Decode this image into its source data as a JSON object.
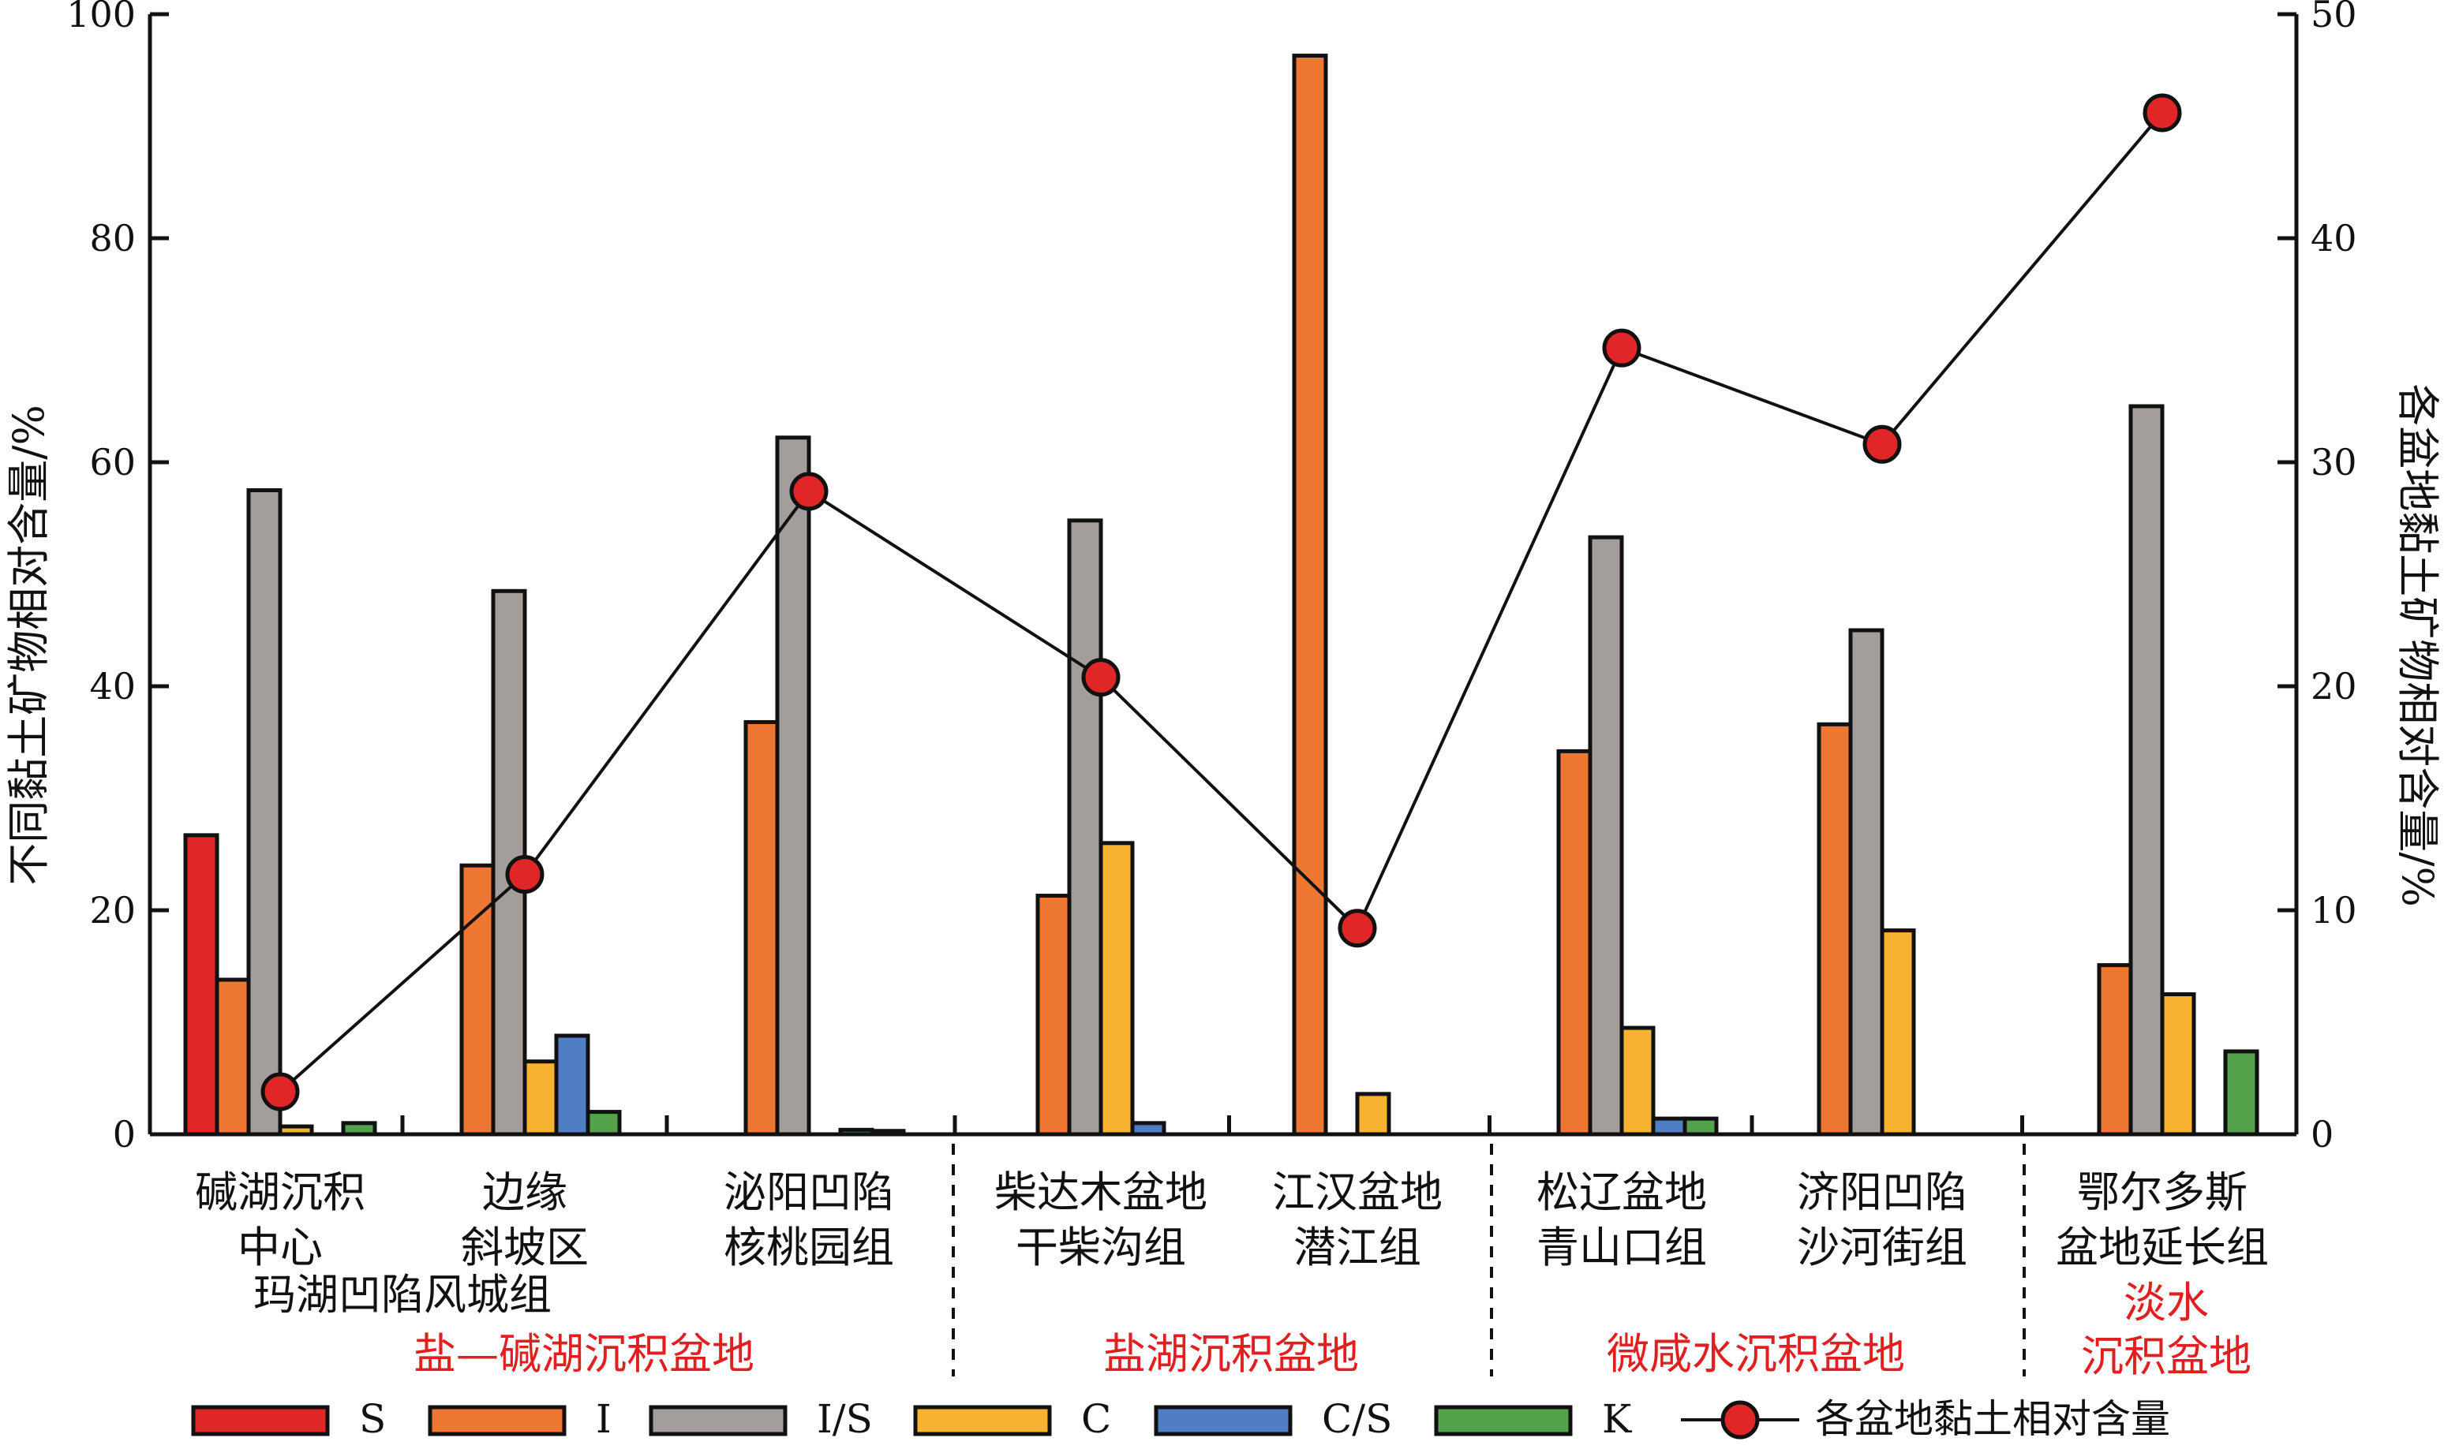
{
  "chart_data": {
    "type": "bar",
    "title": "",
    "ylabel_left": "不同黏土矿物相对含量/%",
    "ylabel_right": "各盆地黏土矿物相对含量/%",
    "ylim_left": [
      0,
      100
    ],
    "ylim_right": [
      0,
      50
    ],
    "yticks_left": [
      "0",
      "20",
      "40",
      "60",
      "80",
      "100"
    ],
    "yticks_right": [
      "0",
      "10",
      "20",
      "30",
      "40",
      "50"
    ],
    "grid": false,
    "legend_position": "bottom",
    "categories": [
      [
        "碱湖沉积",
        "中心"
      ],
      [
        "边缘",
        "斜坡区"
      ],
      [
        "泌阳凹陷",
        "核桃园组"
      ],
      [
        "柴达木盆地",
        "干柴沟组"
      ],
      [
        "江汉盆地",
        "潜江组"
      ],
      [
        "松辽盆地",
        "青山口组"
      ],
      [
        "济阳凹陷",
        "沙河街组"
      ],
      [
        "鄂尔多斯",
        "盆地延长组"
      ]
    ],
    "sublabel": "玛湖凹陷风城组",
    "groups": [
      {
        "label": [
          "盐—碱湖沉积盆地"
        ]
      },
      {
        "label": [
          "盐湖沉积盆地"
        ]
      },
      {
        "label": [
          "微咸水沉积盆地"
        ]
      },
      {
        "label": [
          "淡水",
          "沉积盆地"
        ]
      }
    ],
    "series": [
      {
        "name": "S",
        "color": "#e02626",
        "values": [
          26.7,
          0,
          0,
          0,
          0,
          0,
          0,
          0
        ]
      },
      {
        "name": "I",
        "color": "#ee7733",
        "values": [
          13.8,
          24.0,
          36.8,
          21.3,
          96.3,
          34.2,
          36.6,
          15.1
        ]
      },
      {
        "name": "I/S",
        "color": "#a39e9c",
        "values": [
          57.5,
          48.5,
          62.2,
          54.8,
          0,
          53.3,
          45.0,
          65.0
        ]
      },
      {
        "name": "C",
        "color": "#f7b232",
        "values": [
          0.7,
          6.5,
          0,
          26.0,
          3.6,
          9.5,
          18.2,
          12.5
        ]
      },
      {
        "name": "C/S",
        "color": "#4f7ec4",
        "values": [
          0,
          8.8,
          0.4,
          1.0,
          0,
          1.4,
          0,
          0
        ]
      },
      {
        "name": "K",
        "color": "#54a24b",
        "values": [
          1.0,
          2.0,
          0.3,
          0,
          0,
          1.4,
          0,
          7.4
        ]
      }
    ],
    "line_series": {
      "name": "各盆地黏土相对含量",
      "color": "#e02626",
      "axis": "right",
      "values": [
        1.9,
        11.6,
        28.7,
        20.4,
        9.2,
        35.1,
        30.8,
        45.6
      ]
    }
  }
}
